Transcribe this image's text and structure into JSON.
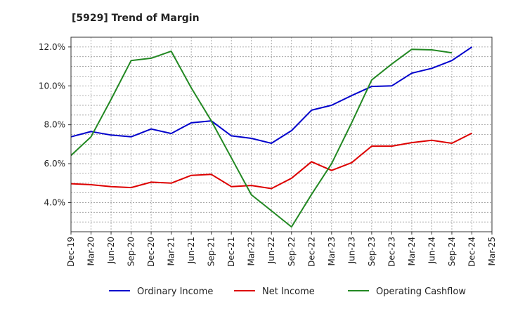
{
  "chart_data": {
    "type": "line",
    "title": "[5929]  Trend of Margin",
    "xlabel": "",
    "ylabel": "",
    "x": [
      "Dec-19",
      "Mar-20",
      "Jun-20",
      "Sep-20",
      "Dec-20",
      "Mar-21",
      "Jun-21",
      "Sep-21",
      "Dec-21",
      "Mar-22",
      "Jun-22",
      "Sep-22",
      "Dec-22",
      "Mar-23",
      "Jun-23",
      "Sep-23",
      "Dec-23",
      "Mar-24",
      "Jun-24",
      "Sep-24",
      "Dec-24",
      "Mar-25"
    ],
    "y_ticks": [
      {
        "value": 4.0,
        "label": "4.0%"
      },
      {
        "value": 6.0,
        "label": "6.0%"
      },
      {
        "value": 8.0,
        "label": "8.0%"
      },
      {
        "value": 10.0,
        "label": "10.0%"
      },
      {
        "value": 12.0,
        "label": "12.0%"
      }
    ],
    "ylim": [
      2.5,
      12.5
    ],
    "grid": true,
    "legend_position": "bottom",
    "series": [
      {
        "name": "Ordinary Income",
        "color": "#0000cc",
        "values": [
          7.38,
          7.65,
          7.47,
          7.38,
          7.78,
          7.55,
          8.1,
          8.2,
          7.43,
          7.3,
          7.05,
          7.7,
          8.75,
          9.0,
          9.5,
          9.97,
          10.0,
          10.65,
          10.9,
          11.3,
          12.0,
          null
        ]
      },
      {
        "name": "Net Income",
        "color": "#dd0000",
        "values": [
          4.97,
          4.92,
          4.82,
          4.77,
          5.05,
          5.0,
          5.4,
          5.45,
          4.82,
          4.88,
          4.72,
          5.25,
          6.1,
          5.65,
          6.05,
          6.9,
          6.9,
          7.08,
          7.2,
          7.05,
          7.57,
          null
        ]
      },
      {
        "name": "Operating Cashflow",
        "color": "#228822",
        "values": [
          6.42,
          7.38,
          9.3,
          11.3,
          11.42,
          11.78,
          9.9,
          8.2,
          6.3,
          4.4,
          3.58,
          2.75,
          4.42,
          6.0,
          8.1,
          10.3,
          11.12,
          11.88,
          11.85,
          11.7,
          null,
          null
        ]
      }
    ]
  }
}
